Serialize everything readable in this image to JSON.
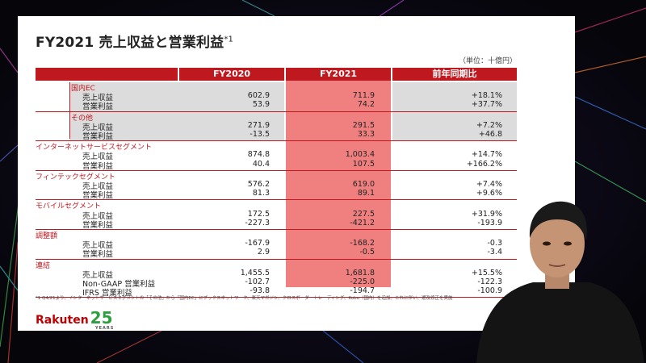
{
  "slide": {
    "title": "FY2021 売上収益と営業利益",
    "title_note": "*1",
    "unit": "（単位：十億円）",
    "columns": [
      "FY2020",
      "FY2021",
      "前年同期比"
    ],
    "segments": [
      {
        "name": "国内EC",
        "highlight": true,
        "indent": true,
        "rows": [
          {
            "label": "売上収益",
            "fy2020": "602.9",
            "fy2021": "711.9",
            "yoy": "+18.1%"
          },
          {
            "label": "営業利益",
            "fy2020": "53.9",
            "fy2021": "74.2",
            "yoy": "+37.7%"
          }
        ]
      },
      {
        "name": "その他",
        "highlight": true,
        "indent": true,
        "rows": [
          {
            "label": "売上収益",
            "fy2020": "271.9",
            "fy2021": "291.5",
            "yoy": "+7.2%"
          },
          {
            "label": "営業利益",
            "fy2020": "-13.5",
            "fy2021": "33.3",
            "yoy": "+46.8"
          }
        ]
      },
      {
        "name": "インターネットサービスセグメント",
        "highlight": false,
        "indent": false,
        "rows": [
          {
            "label": "売上収益",
            "fy2020": "874.8",
            "fy2021": "1,003.4",
            "yoy": "+14.7%"
          },
          {
            "label": "営業利益",
            "fy2020": "40.4",
            "fy2021": "107.5",
            "yoy": "+166.2%"
          }
        ]
      },
      {
        "name": "フィンテックセグメント",
        "highlight": false,
        "indent": false,
        "rows": [
          {
            "label": "売上収益",
            "fy2020": "576.2",
            "fy2021": "619.0",
            "yoy": "+7.4%"
          },
          {
            "label": "営業利益",
            "fy2020": "81.3",
            "fy2021": "89.1",
            "yoy": "+9.6%"
          }
        ]
      },
      {
        "name": "モバイルセグメント",
        "highlight": false,
        "indent": false,
        "rows": [
          {
            "label": "売上収益",
            "fy2020": "172.5",
            "fy2021": "227.5",
            "yoy": "+31.9%"
          },
          {
            "label": "営業利益",
            "fy2020": "-227.3",
            "fy2021": "-421.2",
            "yoy": "-193.9"
          }
        ]
      },
      {
        "name": "調整額",
        "highlight": false,
        "indent": false,
        "rows": [
          {
            "label": "売上収益",
            "fy2020": "-167.9",
            "fy2021": "-168.2",
            "yoy": "-0.3"
          },
          {
            "label": "営業利益",
            "fy2020": "2.9",
            "fy2021": "-0.5",
            "yoy": "-3.4"
          }
        ]
      },
      {
        "name": "連結",
        "highlight": false,
        "indent": false,
        "rows": [
          {
            "label": "売上収益",
            "fy2020": "1,455.5",
            "fy2021": "1,681.8",
            "yoy": "+15.5%"
          },
          {
            "label": "Non-GAAP 営業利益",
            "fy2020": "-102.7",
            "fy2021": "-225.0",
            "yoy": "-122.3"
          },
          {
            "label": "IFRS 営業利益",
            "fy2020": "-93.8",
            "fy2021": "-194.7",
            "yoy": "-100.9"
          }
        ]
      }
    ],
    "footnote": "*1 Q4/21より、インターネットサービスセグメントの「その他」から「国内EC」にブックスネットワーク、楽天マガジン、クロスボーダートレーディング、Kobo（国内）を追加。これに伴い、遡及修正を実施",
    "logo_text": "Rakuten",
    "logo_number": "25",
    "logo_years": "YEARS"
  },
  "colors": {
    "accent_red": "#c0181f",
    "fy2021_col": "#f08080",
    "highlight_grey": "#dcdcdc",
    "logo_red": "#bf0000",
    "logo_green": "#2e9e3e"
  }
}
